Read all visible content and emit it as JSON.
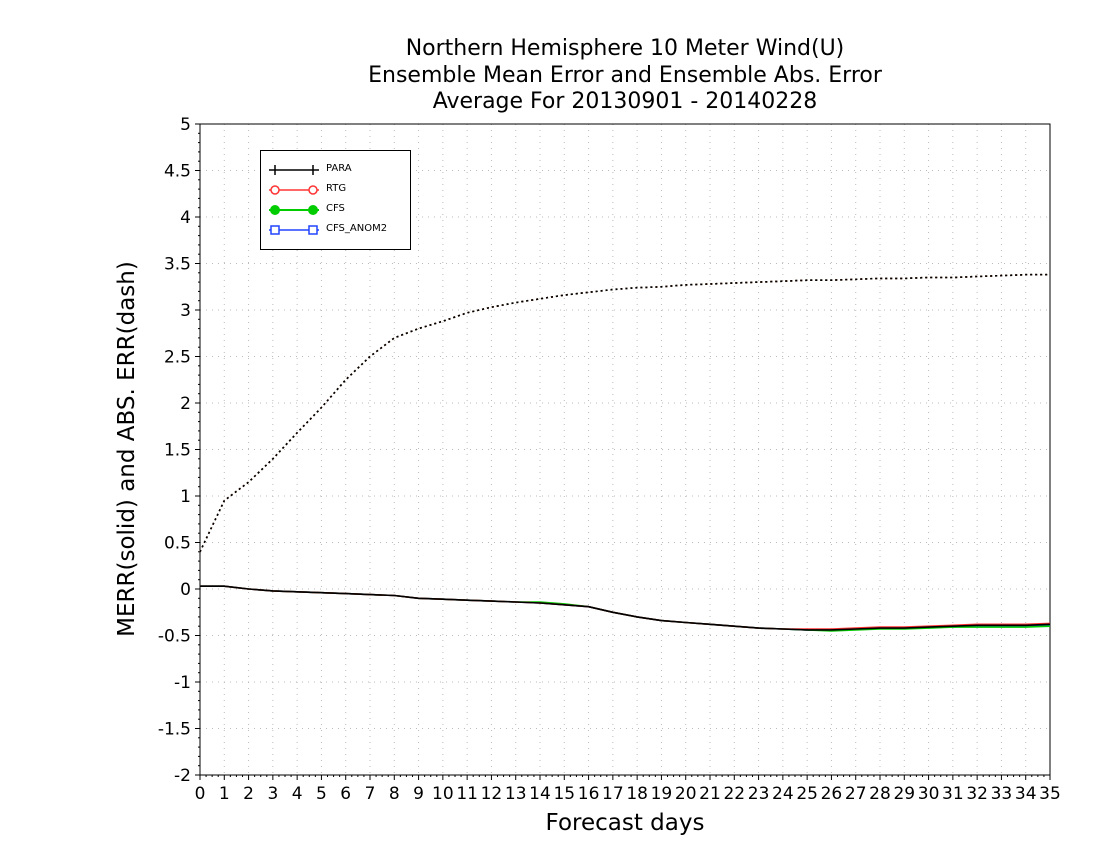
{
  "chart_data": {
    "type": "line",
    "title": [
      "Northern Hemisphere 10 Meter Wind(U)",
      "Ensemble Mean Error and Ensemble Abs. Error",
      "Average For 20130901 - 20140228"
    ],
    "xlabel": "Forecast days",
    "ylabel": "MERR(solid) and ABS. ERR(dash)",
    "xlim": [
      0,
      35
    ],
    "ylim": [
      -2,
      5
    ],
    "xticks": [
      "0",
      "1",
      "2",
      "3",
      "4",
      "5",
      "6",
      "7",
      "8",
      "9",
      "10",
      "11",
      "12",
      "13",
      "14",
      "15",
      "16",
      "17",
      "18",
      "19",
      "20",
      "21",
      "22",
      "23",
      "24",
      "25",
      "26",
      "27",
      "28",
      "29",
      "30",
      "31",
      "32",
      "33",
      "34",
      "35"
    ],
    "yticks": [
      "5",
      "4.5",
      "4",
      "3.5",
      "3",
      "2.5",
      "2",
      "1.5",
      "1",
      "0.5",
      "0",
      "-0.5",
      "-1",
      "-1.5",
      "-2"
    ],
    "grid": true,
    "legend_position": "top-left",
    "colors": {
      "PARA": "#000000",
      "RTG": "#ff3333",
      "CFS": "#00cc00",
      "CFS_ANOM2": "#2244ff"
    },
    "x": [
      0,
      1,
      2,
      3,
      4,
      5,
      6,
      7,
      8,
      9,
      10,
      11,
      12,
      13,
      14,
      15,
      16,
      17,
      18,
      19,
      20,
      21,
      22,
      23,
      24,
      25,
      26,
      27,
      28,
      29,
      30,
      31,
      32,
      33,
      34,
      35
    ],
    "series": [
      {
        "name": "PARA",
        "marker": "plus",
        "merr": [
          0.03,
          0.03,
          0.0,
          -0.02,
          -0.03,
          -0.04,
          -0.05,
          -0.06,
          -0.07,
          -0.1,
          -0.11,
          -0.12,
          -0.13,
          -0.14,
          -0.15,
          -0.17,
          -0.19,
          -0.25,
          -0.3,
          -0.34,
          -0.36,
          -0.38,
          -0.4,
          -0.42,
          -0.43,
          -0.44,
          -0.44,
          -0.43,
          -0.42,
          -0.42,
          -0.41,
          -0.4,
          -0.39,
          -0.39,
          -0.39,
          -0.38
        ],
        "abs_err": [
          0.4,
          0.95,
          1.15,
          1.4,
          1.68,
          1.95,
          2.25,
          2.5,
          2.7,
          2.8,
          2.88,
          2.97,
          3.03,
          3.08,
          3.12,
          3.16,
          3.19,
          3.22,
          3.24,
          3.25,
          3.27,
          3.28,
          3.29,
          3.3,
          3.31,
          3.32,
          3.32,
          3.33,
          3.34,
          3.34,
          3.35,
          3.35,
          3.36,
          3.37,
          3.38,
          3.38
        ]
      },
      {
        "name": "RTG",
        "marker": "open-circle",
        "merr": [
          0.03,
          0.03,
          0.0,
          -0.02,
          -0.03,
          -0.04,
          -0.05,
          -0.06,
          -0.07,
          -0.1,
          -0.11,
          -0.12,
          -0.13,
          -0.14,
          -0.15,
          -0.17,
          -0.19,
          -0.25,
          -0.3,
          -0.34,
          -0.36,
          -0.38,
          -0.4,
          -0.42,
          -0.43,
          -0.43,
          -0.43,
          -0.42,
          -0.41,
          -0.41,
          -0.4,
          -0.39,
          -0.38,
          -0.38,
          -0.38,
          -0.37
        ],
        "abs_err": [
          0.4,
          0.95,
          1.15,
          1.4,
          1.68,
          1.95,
          2.25,
          2.5,
          2.7,
          2.8,
          2.88,
          2.97,
          3.03,
          3.08,
          3.12,
          3.16,
          3.19,
          3.22,
          3.24,
          3.25,
          3.27,
          3.28,
          3.29,
          3.3,
          3.31,
          3.32,
          3.32,
          3.33,
          3.34,
          3.34,
          3.35,
          3.35,
          3.36,
          3.37,
          3.38,
          3.38
        ]
      },
      {
        "name": "CFS",
        "marker": "filled-circle",
        "merr": [
          0.03,
          0.03,
          0.0,
          -0.02,
          -0.03,
          -0.04,
          -0.05,
          -0.06,
          -0.07,
          -0.1,
          -0.11,
          -0.12,
          -0.13,
          -0.14,
          -0.14,
          -0.16,
          -0.19,
          -0.25,
          -0.3,
          -0.34,
          -0.36,
          -0.38,
          -0.4,
          -0.42,
          -0.43,
          -0.44,
          -0.45,
          -0.44,
          -0.43,
          -0.43,
          -0.42,
          -0.41,
          -0.41,
          -0.41,
          -0.41,
          -0.4
        ],
        "abs_err": [
          0.4,
          0.95,
          1.15,
          1.4,
          1.68,
          1.95,
          2.25,
          2.5,
          2.7,
          2.8,
          2.88,
          2.97,
          3.03,
          3.08,
          3.12,
          3.16,
          3.19,
          3.22,
          3.24,
          3.25,
          3.27,
          3.28,
          3.29,
          3.3,
          3.31,
          3.32,
          3.32,
          3.33,
          3.34,
          3.34,
          3.35,
          3.35,
          3.36,
          3.37,
          3.38,
          3.38
        ]
      },
      {
        "name": "CFS_ANOM2",
        "marker": "open-square",
        "merr": [
          0.03,
          0.03,
          0.0,
          -0.02,
          -0.03,
          -0.04,
          -0.05,
          -0.06,
          -0.07,
          -0.1,
          -0.11,
          -0.12,
          -0.13,
          -0.14,
          -0.15,
          -0.17,
          -0.19,
          -0.25,
          -0.3,
          -0.34,
          -0.36,
          -0.38,
          -0.4,
          -0.42,
          -0.43,
          -0.44,
          -0.44,
          -0.43,
          -0.42,
          -0.42,
          -0.41,
          -0.41,
          -0.4,
          -0.4,
          -0.4,
          -0.39
        ],
        "abs_err": [
          0.4,
          0.95,
          1.15,
          1.4,
          1.68,
          1.95,
          2.25,
          2.5,
          2.7,
          2.8,
          2.88,
          2.97,
          3.03,
          3.08,
          3.12,
          3.16,
          3.19,
          3.22,
          3.24,
          3.25,
          3.27,
          3.28,
          3.29,
          3.3,
          3.31,
          3.32,
          3.32,
          3.33,
          3.34,
          3.34,
          3.35,
          3.35,
          3.36,
          3.37,
          3.38,
          3.38
        ]
      }
    ]
  }
}
